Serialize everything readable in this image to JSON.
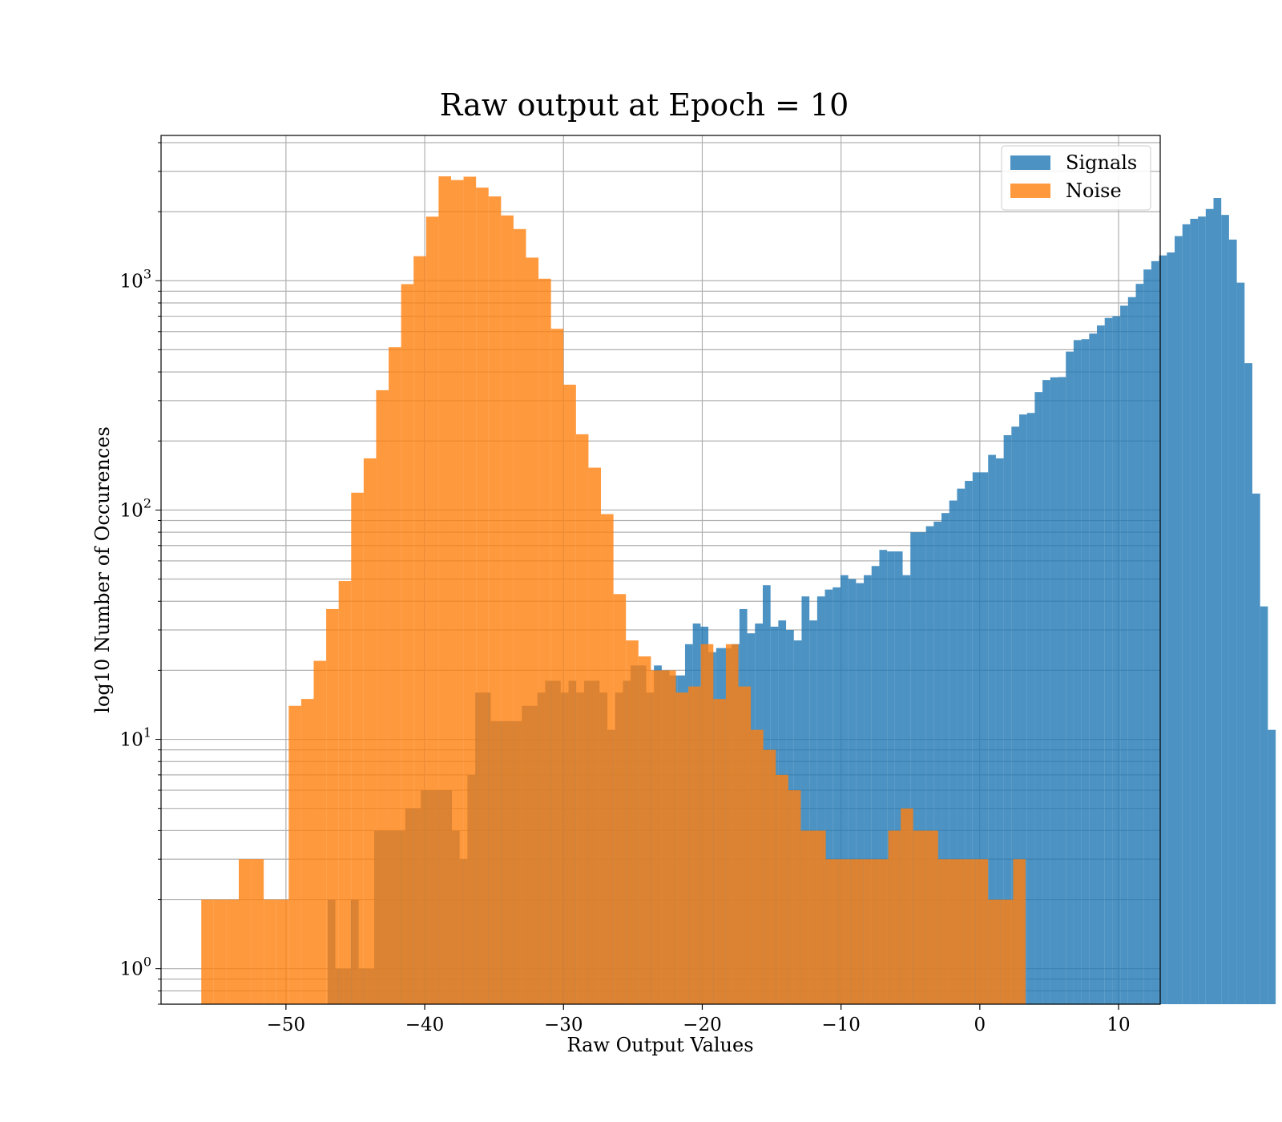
{
  "chart_data": {
    "type": "bar",
    "title": "Raw output at Epoch = 10",
    "xlabel": "Raw Output Values",
    "ylabel": "log10 Number of Occurences",
    "xlim": [
      -59,
      13
    ],
    "ylim": [
      0.7,
      4300
    ],
    "yscale": "log",
    "xticks": [
      -50,
      -40,
      -30,
      -20,
      -10,
      0,
      10
    ],
    "xtick_labels": [
      "−50",
      "−40",
      "−30",
      "−20",
      "−10",
      "0",
      "10"
    ],
    "yticks": [
      1,
      10,
      100,
      1000
    ],
    "ytick_labels": [
      {
        "base": "10",
        "exp": "0"
      },
      {
        "base": "10",
        "exp": "1"
      },
      {
        "base": "10",
        "exp": "2"
      },
      {
        "base": "10",
        "exp": "3"
      }
    ],
    "grid": true,
    "legend_position": "top-right",
    "series": [
      {
        "name": "Signals",
        "color": "#1f77b4",
        "opacity": 0.8,
        "bin_width": 0.56,
        "edges_start": -47.0,
        "counts": [
          2,
          1,
          1,
          2,
          1,
          1,
          4,
          4,
          4,
          4,
          5,
          5,
          6,
          6,
          6,
          6,
          4,
          3,
          7,
          16,
          16,
          12,
          12,
          12,
          12,
          14,
          14,
          16,
          18,
          18,
          16,
          18,
          16,
          18,
          18,
          16,
          11,
          16,
          18,
          21,
          21,
          16,
          21,
          20,
          19,
          19,
          26,
          32,
          31,
          24,
          25,
          25,
          26,
          37,
          29,
          32,
          47,
          31,
          33,
          30,
          27,
          42,
          33,
          42,
          45,
          46,
          52,
          50,
          48,
          52,
          57,
          67,
          66,
          66,
          52,
          80,
          80,
          85,
          89,
          97,
          110,
          124,
          134,
          146,
          146,
          174,
          168,
          212,
          231,
          261,
          265,
          327,
          369,
          379,
          380,
          491,
          551,
          556,
          588,
          638,
          688,
          700,
          778,
          848,
          969,
          1119,
          1217,
          1289,
          1328,
          1565,
          1762,
          1862,
          1904,
          2055,
          2295,
          1936,
          1511,
          981,
          437,
          118,
          38,
          11
        ]
      },
      {
        "name": "Noise",
        "color": "#ff7f0e",
        "opacity": 0.8,
        "bin_width": 0.9,
        "edges_start": -56.1,
        "counts": [
          2,
          2,
          2,
          3,
          3,
          2,
          2,
          14,
          15,
          22,
          37,
          49,
          119,
          168,
          333,
          513,
          966,
          1279,
          1902,
          2852,
          2747,
          2842,
          2547,
          2331,
          1926,
          1680,
          1261,
          1020,
          617,
          352,
          214,
          153,
          96,
          43,
          27,
          23,
          20,
          20,
          16,
          17,
          26,
          15,
          26,
          17,
          11,
          9,
          7,
          6,
          4,
          4,
          3,
          3,
          3,
          3,
          3,
          4,
          5,
          4,
          4,
          3,
          3,
          3,
          3,
          2,
          2,
          3
        ]
      }
    ]
  }
}
